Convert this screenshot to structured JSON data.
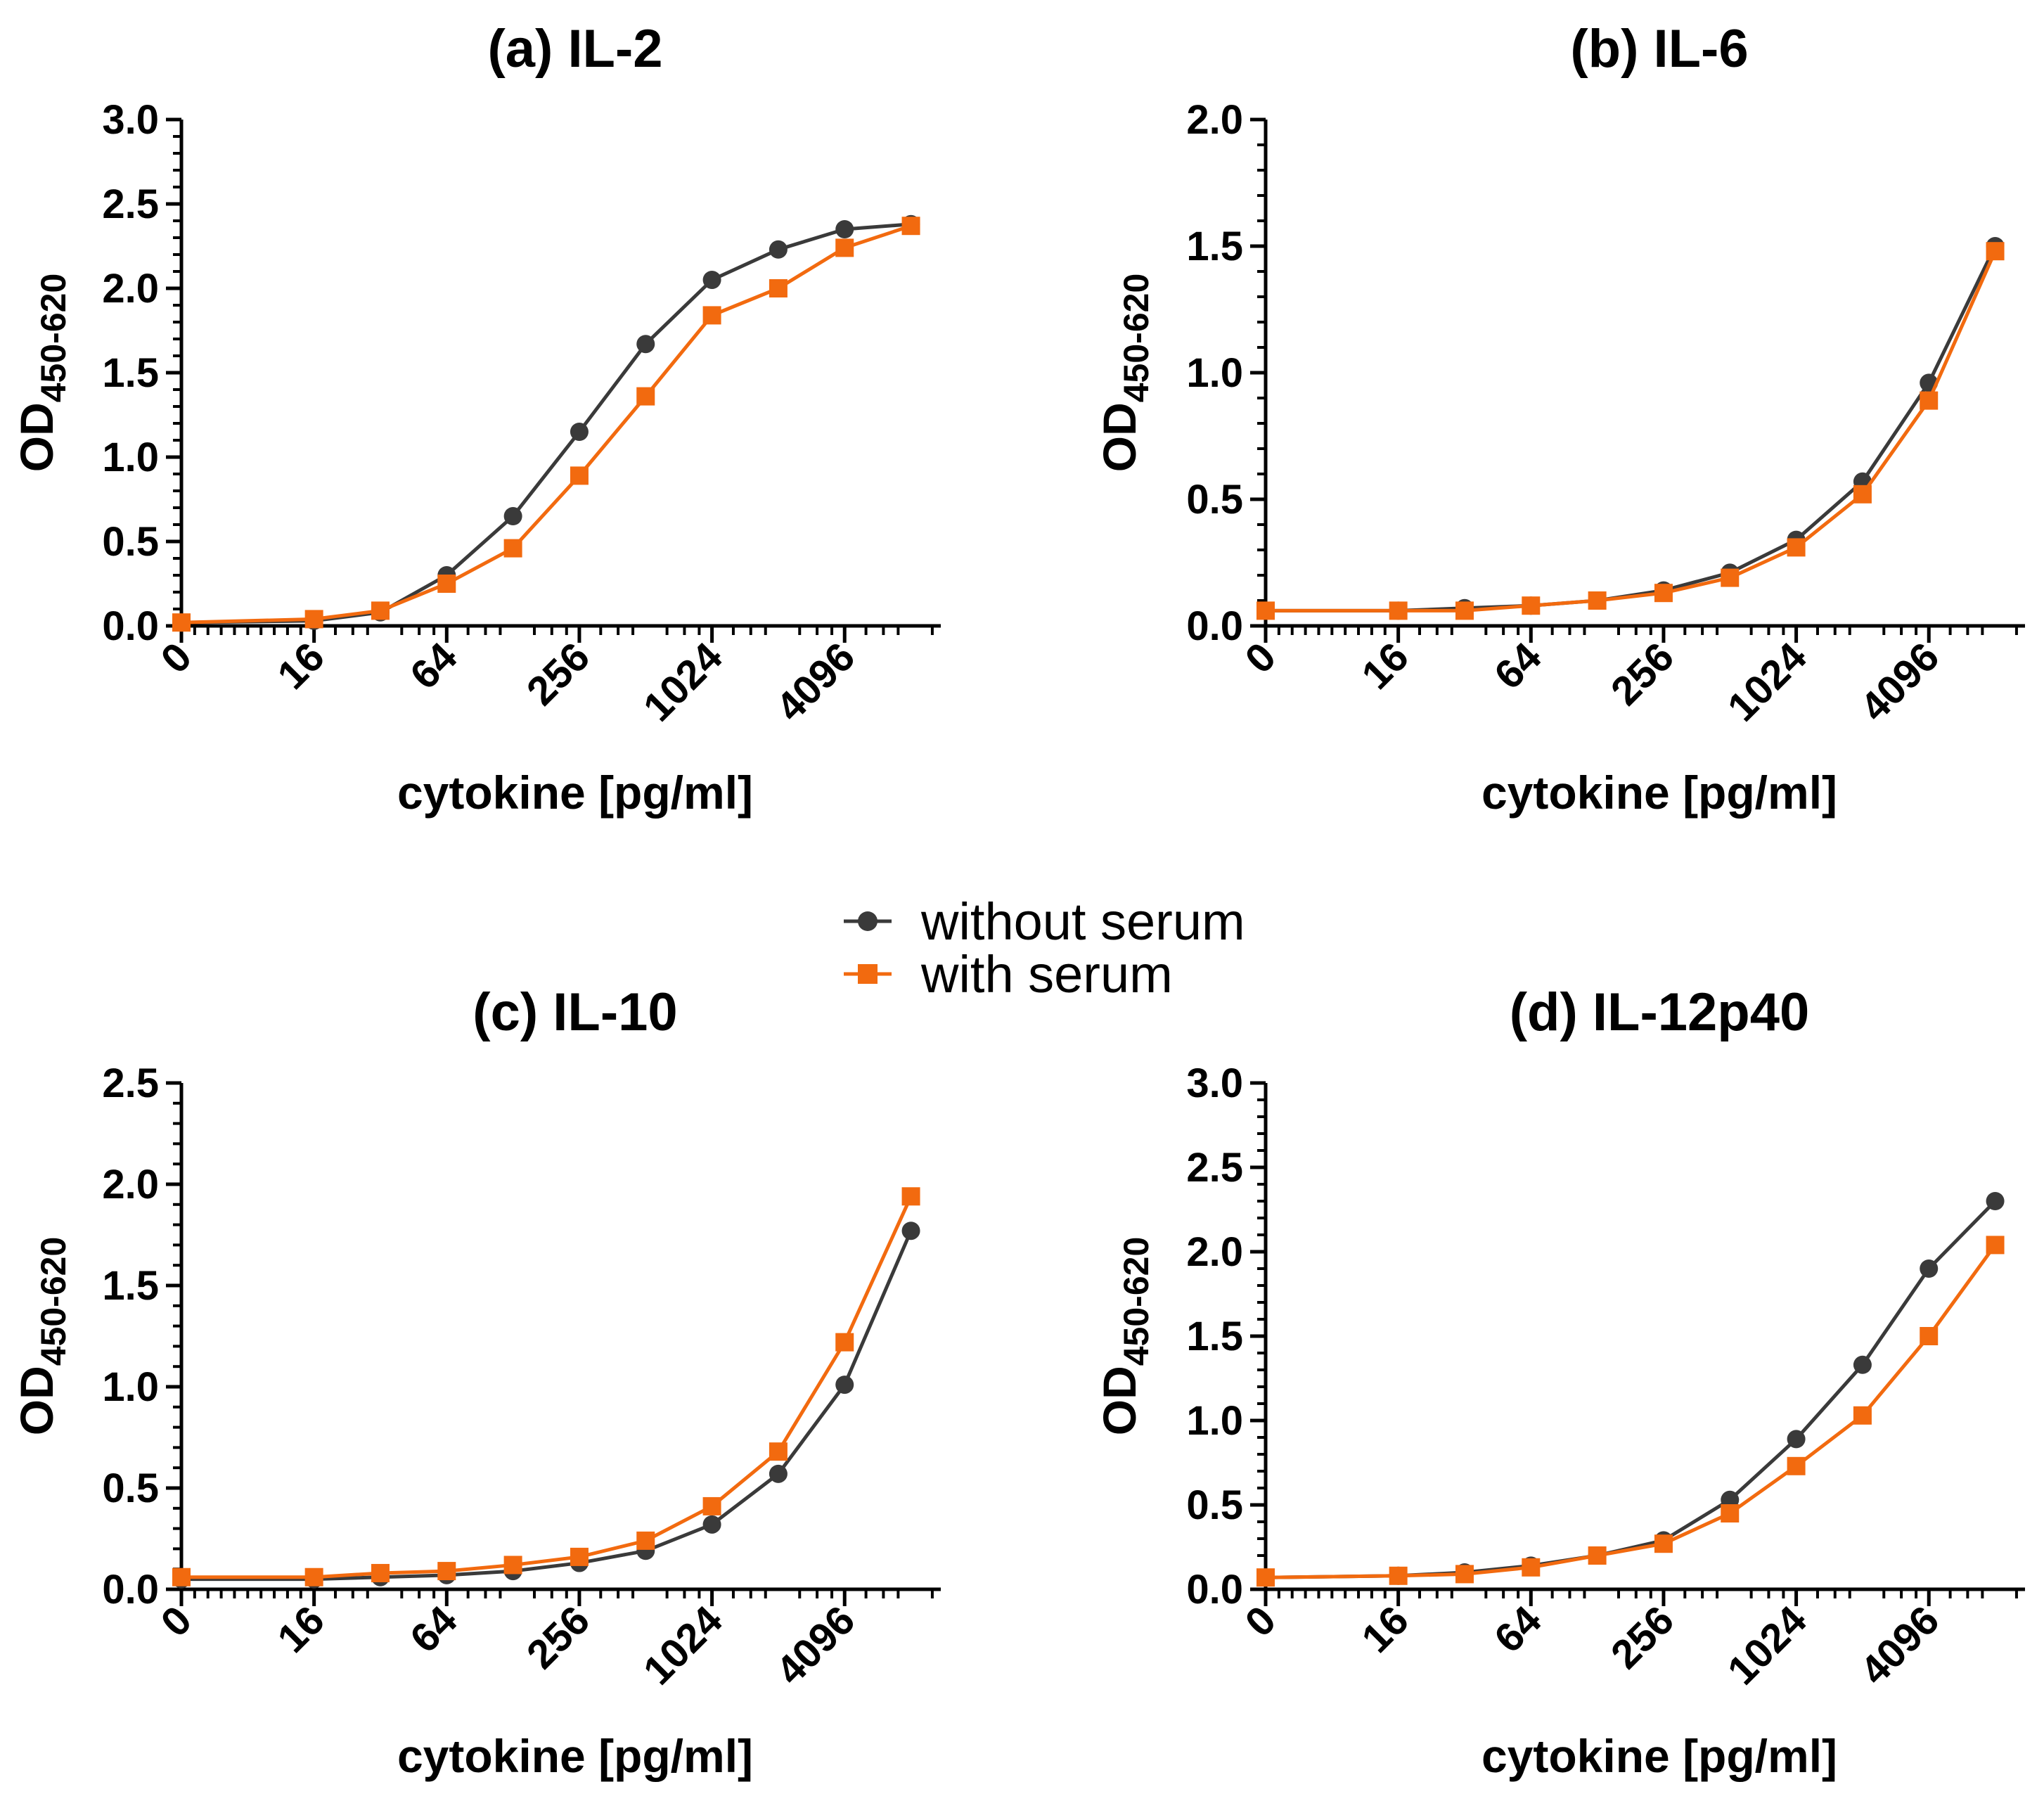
{
  "colors": {
    "without_serum": "#3a3a3a",
    "with_serum": "#f26a0f"
  },
  "legend": {
    "items": [
      {
        "label": "without serum",
        "series": "without_serum",
        "marker": "circle"
      },
      {
        "label": "with serum",
        "series": "with_serum",
        "marker": "square"
      }
    ]
  },
  "chart_data": [
    {
      "id": "a",
      "type": "line",
      "title": "(a) IL-2",
      "xlabel": "cytokine [pg/ml]",
      "ylabel": "OD",
      "ylabel_sub": "450-620",
      "ylim": [
        0,
        3.0
      ],
      "yticks": [
        "0.0",
        "0.5",
        "1.0",
        "1.5",
        "2.0",
        "2.5",
        "3.0"
      ],
      "xticks": [
        "0",
        "16",
        "64",
        "256",
        "1024",
        "4096"
      ],
      "x": [
        0,
        2,
        3,
        4,
        5,
        6,
        7,
        8,
        9,
        10,
        11
      ],
      "series": [
        {
          "name": "without serum",
          "values": [
            0.02,
            0.03,
            0.08,
            0.3,
            0.65,
            1.15,
            1.67,
            2.05,
            2.23,
            2.35,
            2.38
          ]
        },
        {
          "name": "with serum",
          "values": [
            0.02,
            0.04,
            0.09,
            0.25,
            0.46,
            0.89,
            1.36,
            1.84,
            2.0,
            2.24,
            2.37
          ]
        }
      ]
    },
    {
      "id": "b",
      "type": "line",
      "title": "(b) IL-6",
      "xlabel": "cytokine [pg/ml]",
      "ylabel": "OD",
      "ylabel_sub": "450-620",
      "ylim": [
        0,
        2.0
      ],
      "yticks": [
        "0.0",
        "0.5",
        "1.0",
        "1.5",
        "2.0"
      ],
      "xticks": [
        "0",
        "16",
        "64",
        "256",
        "1024",
        "4096"
      ],
      "x": [
        0,
        2,
        3,
        4,
        5,
        6,
        7,
        8,
        9,
        10,
        11
      ],
      "series": [
        {
          "name": "without serum",
          "values": [
            0.06,
            0.06,
            0.07,
            0.08,
            0.1,
            0.14,
            0.21,
            0.34,
            0.57,
            0.96,
            1.5
          ]
        },
        {
          "name": "with serum",
          "values": [
            0.06,
            0.06,
            0.06,
            0.08,
            0.1,
            0.13,
            0.19,
            0.31,
            0.52,
            0.89,
            1.48
          ]
        }
      ]
    },
    {
      "id": "c",
      "type": "line",
      "title": "(c) IL-10",
      "xlabel": "cytokine [pg/ml]",
      "ylabel": "OD",
      "ylabel_sub": "450-620",
      "ylim": [
        0,
        2.5
      ],
      "yticks": [
        "0.0",
        "0.5",
        "1.0",
        "1.5",
        "2.0",
        "2.5"
      ],
      "xticks": [
        "0",
        "16",
        "64",
        "256",
        "1024",
        "4096"
      ],
      "x": [
        0,
        2,
        3,
        4,
        5,
        6,
        7,
        8,
        9,
        10,
        11
      ],
      "series": [
        {
          "name": "without serum",
          "values": [
            0.05,
            0.05,
            0.06,
            0.07,
            0.09,
            0.13,
            0.19,
            0.32,
            0.57,
            1.01,
            1.77
          ]
        },
        {
          "name": "with serum",
          "values": [
            0.06,
            0.06,
            0.08,
            0.09,
            0.12,
            0.16,
            0.24,
            0.41,
            0.68,
            1.22,
            1.94
          ]
        }
      ]
    },
    {
      "id": "d",
      "type": "line",
      "title": "(d) IL-12p40",
      "xlabel": "cytokine [pg/ml]",
      "ylabel": "OD",
      "ylabel_sub": "450-620",
      "ylim": [
        0,
        3.0
      ],
      "yticks": [
        "0.0",
        "0.5",
        "1.0",
        "1.5",
        "2.0",
        "2.5",
        "3.0"
      ],
      "xticks": [
        "0",
        "16",
        "64",
        "256",
        "1024",
        "4096"
      ],
      "x": [
        0,
        2,
        3,
        4,
        5,
        6,
        7,
        8,
        9,
        10,
        11
      ],
      "series": [
        {
          "name": "without serum",
          "values": [
            0.07,
            0.08,
            0.1,
            0.14,
            0.2,
            0.29,
            0.53,
            0.89,
            1.33,
            1.9,
            2.3
          ]
        },
        {
          "name": "with serum",
          "values": [
            0.07,
            0.08,
            0.09,
            0.13,
            0.2,
            0.27,
            0.45,
            0.73,
            1.03,
            1.5,
            2.04
          ]
        }
      ]
    }
  ]
}
